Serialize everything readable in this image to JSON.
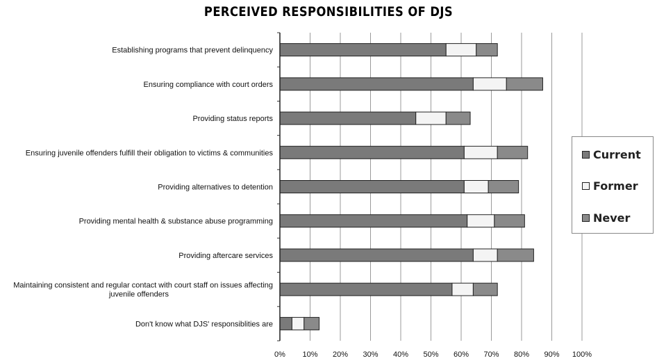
{
  "chart_data": {
    "type": "bar",
    "orientation": "horizontal",
    "stacked": true,
    "title": "PERCEIVED RESPONSIBILITIES OF DJS",
    "xlabel": "",
    "ylabel": "",
    "xlim": [
      0,
      100
    ],
    "x_ticks": [
      "0%",
      "10%",
      "20%",
      "30%",
      "40%",
      "50%",
      "60%",
      "70%",
      "80%",
      "90%",
      "100%"
    ],
    "grid": "vertical",
    "legend_position": "right",
    "categories": [
      "Establishing programs that prevent delinquency",
      "Ensuring compliance with court orders",
      "Providing status reports",
      "Ensuring juvenile offenders fulfill their obligation to victims & communities",
      "Providing alternatives to detention",
      "Providing mental health & substance abuse programming",
      "Providing aftercare services",
      "Maintaining consistent and regular contact with court staff on issues affecting juvenile offenders",
      "Don't know what DJS' responsiblities are"
    ],
    "series": [
      {
        "name": "Current",
        "color": "#7a7a7a",
        "values": [
          55,
          64,
          45,
          61,
          61,
          62,
          64,
          57,
          4
        ]
      },
      {
        "name": "Former",
        "color": "#f4f4f4",
        "values": [
          10,
          11,
          10,
          11,
          8,
          9,
          8,
          7,
          4
        ]
      },
      {
        "name": "Never",
        "color": "#8a8a8a",
        "values": [
          7,
          12,
          8,
          10,
          10,
          10,
          12,
          8,
          5
        ]
      }
    ]
  }
}
